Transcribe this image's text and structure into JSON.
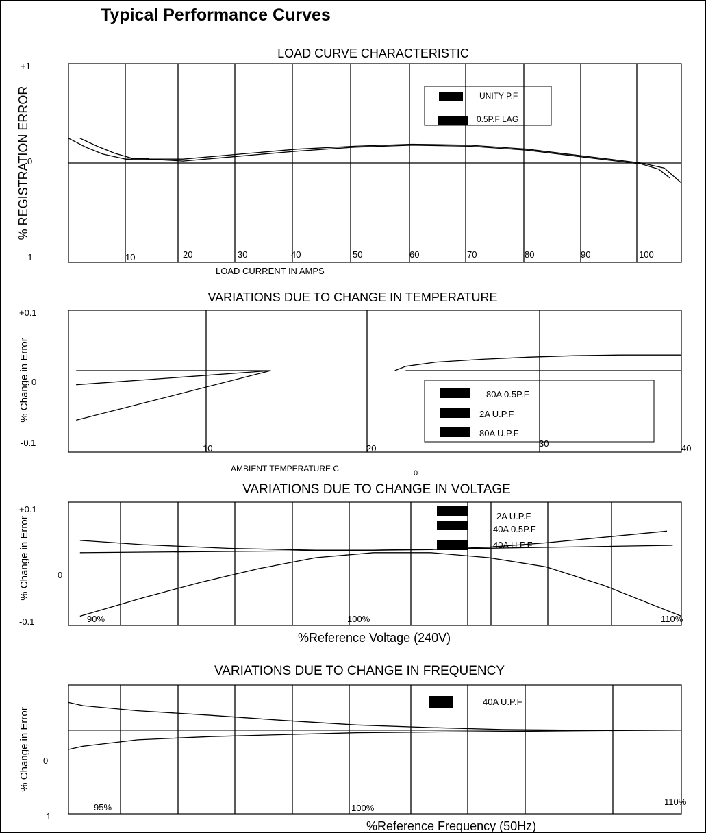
{
  "page_title": "Typical Performance Curves",
  "chart_data": [
    {
      "type": "line",
      "title": "LOAD CURVE CHARACTERISTIC",
      "xlabel": "LOAD CURRENT IN AMPS",
      "ylabel": "% REGISTRATION ERROR",
      "y_ticks": [
        "+1",
        "0",
        "-1"
      ],
      "x_ticks": [
        "10",
        "20",
        "30",
        "40",
        "50",
        "60",
        "70",
        "80",
        "90",
        "100"
      ],
      "xlim": [
        0,
        107
      ],
      "ylim": [
        -1,
        1
      ],
      "grid": "vertical",
      "legend_position": "top-right",
      "legend": [
        {
          "name": "UNITY P.F",
          "color": "#000000"
        },
        {
          "name": "0.5P.F LAG",
          "color": "#000000"
        }
      ],
      "series": [
        {
          "legend_index": 0,
          "x": [
            0,
            3,
            6,
            10,
            20,
            30,
            40,
            50,
            60,
            70,
            80,
            90,
            100,
            104,
            107
          ],
          "y": [
            0.25,
            0.16,
            0.09,
            0.04,
            0.04,
            0.09,
            0.14,
            0.17,
            0.19,
            0.18,
            0.14,
            0.07,
            0.0,
            -0.05,
            -0.2
          ]
        },
        {
          "legend_index": 1,
          "x": [
            2,
            5,
            8,
            11,
            20,
            30,
            40,
            50,
            60,
            70,
            80,
            90,
            100,
            103,
            105
          ],
          "y": [
            0.25,
            0.17,
            0.1,
            0.05,
            0.02,
            0.07,
            0.12,
            0.16,
            0.18,
            0.17,
            0.13,
            0.06,
            -0.01,
            -0.06,
            -0.15
          ]
        },
        {
          "legend_index": 1,
          "x": [
            10,
            11,
            12,
            13,
            14
          ],
          "y": [
            0.04,
            0.04,
            0.05,
            0.05,
            0.05
          ]
        }
      ]
    },
    {
      "type": "line",
      "title": "VARIATIONS DUE TO CHANGE IN TEMPERATURE",
      "xlabel": "AMBIENT TEMPERATURE C",
      "xlabel_superscript": "0",
      "ylabel": "% Change in Error",
      "y_ticks": [
        "+0.1",
        "0",
        "-0.1"
      ],
      "x_ticks": [
        "10",
        "20",
        "30",
        "40"
      ],
      "xlim": [
        0,
        40
      ],
      "ylim": [
        -0.1,
        0.1
      ],
      "grid": "vertical",
      "legend_position": "bottom-right",
      "legend": [
        {
          "name": "80A 0.5P.F",
          "color": "#000000"
        },
        {
          "name": "2A U.P.F",
          "color": "#000000"
        },
        {
          "name": "80A U.P.F",
          "color": "#000000"
        }
      ],
      "series": [
        {
          "legend_index": 2,
          "x": [
            0.5,
            13.2
          ],
          "y": [
            0.015,
            0.015
          ]
        },
        {
          "legend_index": 2,
          "x": [
            22,
            40
          ],
          "y": [
            0.015,
            0.015
          ]
        },
        {
          "legend_index": 1,
          "x": [
            0.5,
            13.2
          ],
          "y": [
            -0.005,
            0.015
          ]
        },
        {
          "legend_index": 0,
          "x": [
            0.5,
            13.2
          ],
          "y": [
            -0.055,
            0.015
          ]
        },
        {
          "legend_index": 0,
          "x": [
            21.3,
            22,
            24,
            27,
            30,
            33,
            36,
            40
          ],
          "y": [
            0.015,
            0.021,
            0.027,
            0.031,
            0.034,
            0.036,
            0.037,
            0.037
          ]
        }
      ]
    },
    {
      "type": "line",
      "title": "VARIATIONS DUE TO CHANGE IN VOLTAGE",
      "xlabel": "%Reference Voltage (240V)",
      "ylabel": "% Change in Error",
      "y_ticks": [
        "+0.1",
        "0",
        "-0.1"
      ],
      "x_ticks": [
        "90%",
        "100%",
        "110%"
      ],
      "xlim": [
        89.4,
        110.7
      ],
      "ylim": [
        -0.1,
        0.1
      ],
      "grid": "vertical",
      "legend_position": "top-right",
      "legend": [
        {
          "name": "2A U.P.F",
          "color": "#000000"
        },
        {
          "name": "40A 0.5P.F",
          "color": "#000000"
        },
        {
          "name": "40A U.P.F",
          "color": "#000000"
        }
      ],
      "series": [
        {
          "legend_index": 0,
          "x": [
            89.8,
            95,
            100,
            105,
            110.4
          ],
          "y": [
            0.018,
            0.02,
            0.022,
            0.026,
            0.03
          ]
        },
        {
          "legend_index": 1,
          "x": [
            89.8,
            92,
            95,
            98,
            100,
            102,
            104,
            106,
            108,
            110.2
          ],
          "y": [
            0.038,
            0.031,
            0.025,
            0.022,
            0.022,
            0.023,
            0.027,
            0.034,
            0.043,
            0.053
          ]
        },
        {
          "legend_index": 2,
          "x": [
            89.8,
            92,
            94,
            96,
            98,
            100,
            102,
            104,
            106,
            108,
            110.7
          ],
          "y": [
            -0.085,
            -0.055,
            -0.03,
            -0.008,
            0.01,
            0.018,
            0.018,
            0.01,
            -0.005,
            -0.035,
            -0.085
          ]
        }
      ]
    },
    {
      "type": "line",
      "title": "VARIATIONS DUE TO CHANGE IN FREQUENCY",
      "xlabel": "%Reference Frequency (50Hz)",
      "ylabel": "% Change in Error",
      "y_ticks": [
        "0",
        "-1"
      ],
      "x_ticks": [
        "95%",
        "100%",
        "110%"
      ],
      "xlim": [
        94.1,
        110.9
      ],
      "ylim": [
        -1,
        1
      ],
      "grid": "vertical",
      "legend_position": "top-right",
      "legend": [
        {
          "name": "40A U.P.F",
          "color": "#000000"
        }
      ],
      "series": [
        {
          "legend_index": 0,
          "x": [
            94.1,
            110.9
          ],
          "y": [
            0.3,
            0.3
          ]
        },
        {
          "legend_index": 0,
          "x": [
            94.1,
            94.5,
            96,
            98,
            100,
            102,
            104,
            106,
            108,
            110.9
          ],
          "y": [
            0.73,
            0.68,
            0.6,
            0.53,
            0.45,
            0.38,
            0.34,
            0.31,
            0.3,
            0.3
          ]
        },
        {
          "legend_index": 0,
          "x": [
            94.1,
            94.5,
            96,
            98,
            100,
            102,
            104,
            106,
            108,
            110.9
          ],
          "y": [
            0.0,
            0.05,
            0.15,
            0.2,
            0.23,
            0.26,
            0.27,
            0.28,
            0.29,
            0.3
          ]
        }
      ]
    }
  ]
}
